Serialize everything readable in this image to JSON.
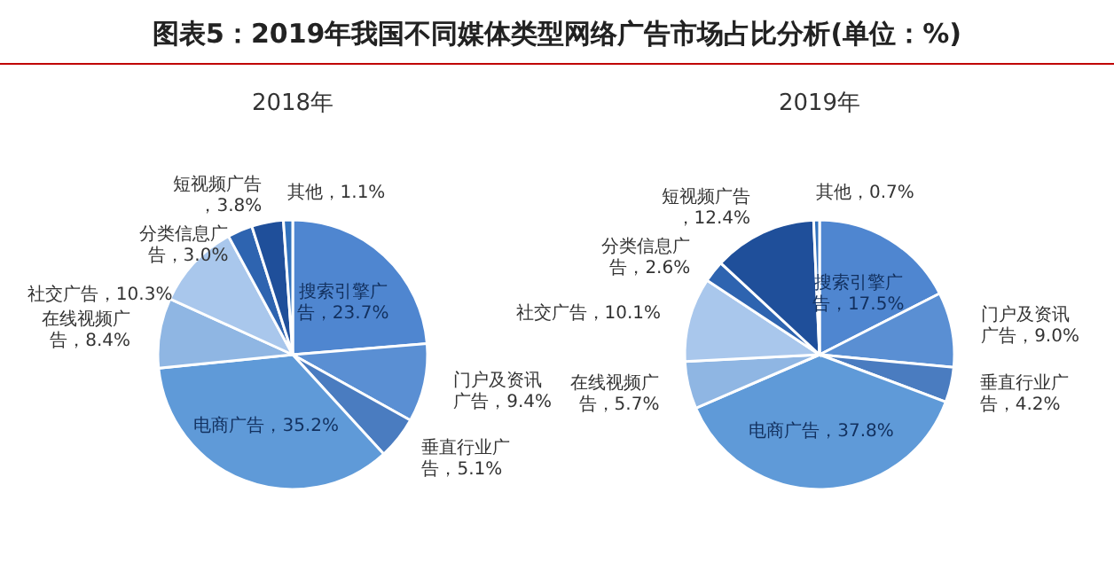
{
  "chart_data": [
    {
      "type": "pie",
      "title": "图表5：2019年我国不同媒体类型网络广告市场占比分析(单位：%)",
      "subtitle": "2018年",
      "categories": [
        "搜索引擎广告",
        "门户及资讯广告",
        "垂直行业广告",
        "电商广告",
        "在线视频广告",
        "社交广告",
        "分类信息广告",
        "短视频广告",
        "其他"
      ],
      "values": [
        23.7,
        9.4,
        5.1,
        35.2,
        8.4,
        10.3,
        3.0,
        3.8,
        1.1
      ],
      "value_labels": [
        "，23.7%",
        "，9.4%",
        "，5.1%",
        "，35.2%",
        "，8.4%",
        "，10.3%",
        "，3.0%",
        "，3.8%",
        "，1.1%"
      ],
      "colors": [
        "#4f86d0",
        "#5a8fd3",
        "#4a7cc0",
        "#5f9ad8",
        "#8fb6e3",
        "#a9c7ec",
        "#2e64b0",
        "#1f4f9a",
        "#3272bd"
      ]
    },
    {
      "type": "pie",
      "subtitle": "2019年",
      "categories": [
        "搜索引擎广告",
        "门户及资讯广告",
        "垂直行业广告",
        "电商广告",
        "在线视频广告",
        "社交广告",
        "分类信息广告",
        "短视频广告",
        "其他"
      ],
      "values": [
        17.5,
        9.0,
        4.2,
        37.8,
        5.7,
        10.1,
        2.6,
        12.4,
        0.7
      ],
      "value_labels": [
        "，17.5%",
        "，9.0%",
        "，4.2%",
        "，37.8%",
        "，5.7%",
        "，10.1%",
        "，2.6%",
        "，12.4%",
        "，0.7%"
      ],
      "colors": [
        "#4f86d0",
        "#5a8fd3",
        "#4a7cc0",
        "#5f9ad8",
        "#8fb6e3",
        "#a9c7ec",
        "#2e64b0",
        "#1f4f9a",
        "#3272bd"
      ]
    }
  ]
}
